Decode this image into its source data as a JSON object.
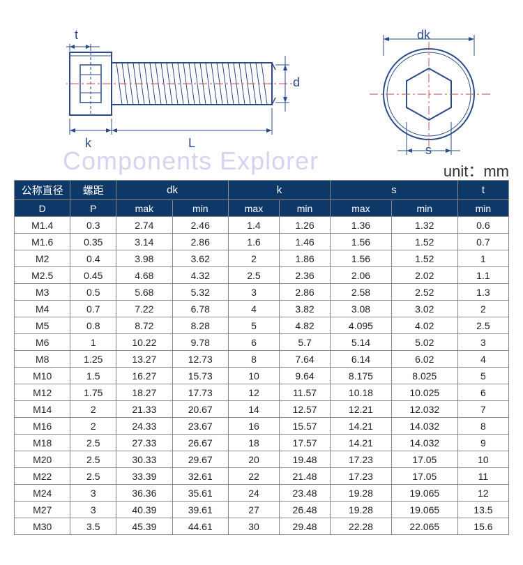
{
  "watermark": "Components Explorer",
  "unit_label": "unit：mm",
  "dims": {
    "t": "t",
    "k": "k",
    "L": "L",
    "d": "d",
    "dk": "dk",
    "s": "s"
  },
  "colors": {
    "header_bg": "#0d3868",
    "header_fg": "#ffffff",
    "border": "#888888",
    "line": "#2a4a8a",
    "centerline": "#d04a4a",
    "watermark": "#b8b8e8"
  },
  "table": {
    "head1": [
      "公称直径",
      "螺距",
      "dk",
      "dk",
      "k",
      "k",
      "s",
      "s",
      "t"
    ],
    "head2": [
      "D",
      "P",
      "mak",
      "min",
      "max",
      "min",
      "max",
      "min",
      "min"
    ],
    "colspans": [
      1,
      1,
      2,
      0,
      2,
      0,
      2,
      0,
      1
    ],
    "rows": [
      [
        "M1.4",
        "0.3",
        "2.74",
        "2.46",
        "1.4",
        "1.26",
        "1.36",
        "1.32",
        "0.6"
      ],
      [
        "M1.6",
        "0.35",
        "3.14",
        "2.86",
        "1.6",
        "1.46",
        "1.56",
        "1.52",
        "0.7"
      ],
      [
        "M2",
        "0.4",
        "3.98",
        "3.62",
        "2",
        "1.86",
        "1.56",
        "1.52",
        "1"
      ],
      [
        "M2.5",
        "0.45",
        "4.68",
        "4.32",
        "2.5",
        "2.36",
        "2.06",
        "2.02",
        "1.1"
      ],
      [
        "M3",
        "0.5",
        "5.68",
        "5.32",
        "3",
        "2.86",
        "2.58",
        "2.52",
        "1.3"
      ],
      [
        "M4",
        "0.7",
        "7.22",
        "6.78",
        "4",
        "3.82",
        "3.08",
        "3.02",
        "2"
      ],
      [
        "M5",
        "0.8",
        "8.72",
        "8.28",
        "5",
        "4.82",
        "4.095",
        "4.02",
        "2.5"
      ],
      [
        "M6",
        "1",
        "10.22",
        "9.78",
        "6",
        "5.7",
        "5.14",
        "5.02",
        "3"
      ],
      [
        "M8",
        "1.25",
        "13.27",
        "12.73",
        "8",
        "7.64",
        "6.14",
        "6.02",
        "4"
      ],
      [
        "M10",
        "1.5",
        "16.27",
        "15.73",
        "10",
        "9.64",
        "8.175",
        "8.025",
        "5"
      ],
      [
        "M12",
        "1.75",
        "18.27",
        "17.73",
        "12",
        "11.57",
        "10.18",
        "10.025",
        "6"
      ],
      [
        "M14",
        "2",
        "21.33",
        "20.67",
        "14",
        "12.57",
        "12.21",
        "12.032",
        "7"
      ],
      [
        "M16",
        "2",
        "24.33",
        "23.67",
        "16",
        "15.57",
        "14.21",
        "14.032",
        "8"
      ],
      [
        "M18",
        "2.5",
        "27.33",
        "26.67",
        "18",
        "17.57",
        "14.21",
        "14.032",
        "9"
      ],
      [
        "M20",
        "2.5",
        "30.33",
        "29.67",
        "20",
        "19.48",
        "17.23",
        "17.05",
        "10"
      ],
      [
        "M22",
        "2.5",
        "33.39",
        "32.61",
        "22",
        "21.48",
        "17.23",
        "17.05",
        "11"
      ],
      [
        "M24",
        "3",
        "36.36",
        "35.61",
        "24",
        "23.48",
        "19.28",
        "19.065",
        "12"
      ],
      [
        "M27",
        "3",
        "40.39",
        "39.61",
        "27",
        "26.48",
        "19.28",
        "19.065",
        "13.5"
      ],
      [
        "M30",
        "3.5",
        "45.39",
        "44.61",
        "30",
        "29.48",
        "22.28",
        "22.065",
        "15.6"
      ]
    ]
  }
}
